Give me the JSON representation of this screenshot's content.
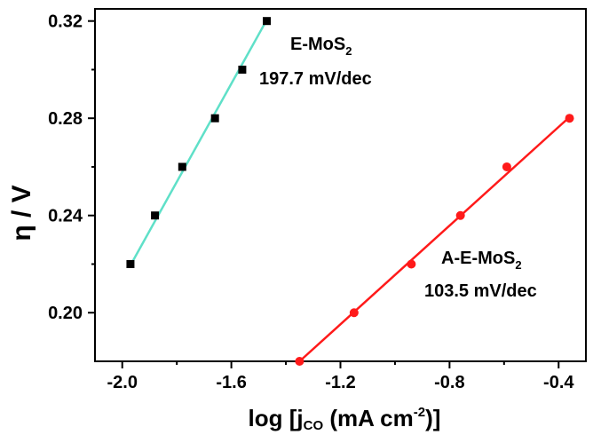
{
  "chart_data": {
    "type": "scatter",
    "xlim": [
      -2.1,
      -0.3
    ],
    "ylim": [
      0.18,
      0.325
    ],
    "x_ticks": [
      "-2.0",
      "-1.6",
      "-1.2",
      "-0.8",
      "-0.4"
    ],
    "y_ticks": [
      "0.20",
      "0.24",
      "0.28",
      "0.32"
    ],
    "x_tick_values": [
      -2.0,
      -1.6,
      -1.2,
      -0.8,
      -0.4
    ],
    "y_tick_values": [
      0.2,
      0.24,
      0.28,
      0.32
    ],
    "xlabel": {
      "pre": "log [j",
      "sub": "CO",
      "mid": " (mA cm",
      "sup": "-2",
      "post": ")]"
    },
    "ylabel": "η / V",
    "grid": false,
    "series": [
      {
        "label_text": {
          "main": "E-MoS",
          "sub": "2"
        },
        "slope_text": "197.7 mV/dec",
        "marker": "square",
        "marker_color": "#000000",
        "line_color": "#5fe0c8",
        "x": [
          -1.97,
          -1.88,
          -1.78,
          -1.66,
          -1.56,
          -1.47
        ],
        "y": [
          0.22,
          0.24,
          0.26,
          0.28,
          0.3,
          0.32
        ],
        "fit_x": [
          -1.97,
          -1.47
        ],
        "fit_y": [
          0.2195,
          0.3205
        ]
      },
      {
        "label_text": {
          "main": "A-E-MoS",
          "sub": "2"
        },
        "slope_text": "103.5 mV/dec",
        "marker": "circle",
        "marker_color": "#ff1a1a",
        "line_color": "#ff1a1a",
        "x": [
          -1.35,
          -1.15,
          -0.94,
          -0.76,
          -0.59,
          -0.36
        ],
        "y": [
          0.18,
          0.2,
          0.22,
          0.24,
          0.26,
          0.28
        ],
        "fit_x": [
          -1.35,
          -0.36
        ],
        "fit_y": [
          0.18,
          0.2805
        ]
      }
    ]
  }
}
